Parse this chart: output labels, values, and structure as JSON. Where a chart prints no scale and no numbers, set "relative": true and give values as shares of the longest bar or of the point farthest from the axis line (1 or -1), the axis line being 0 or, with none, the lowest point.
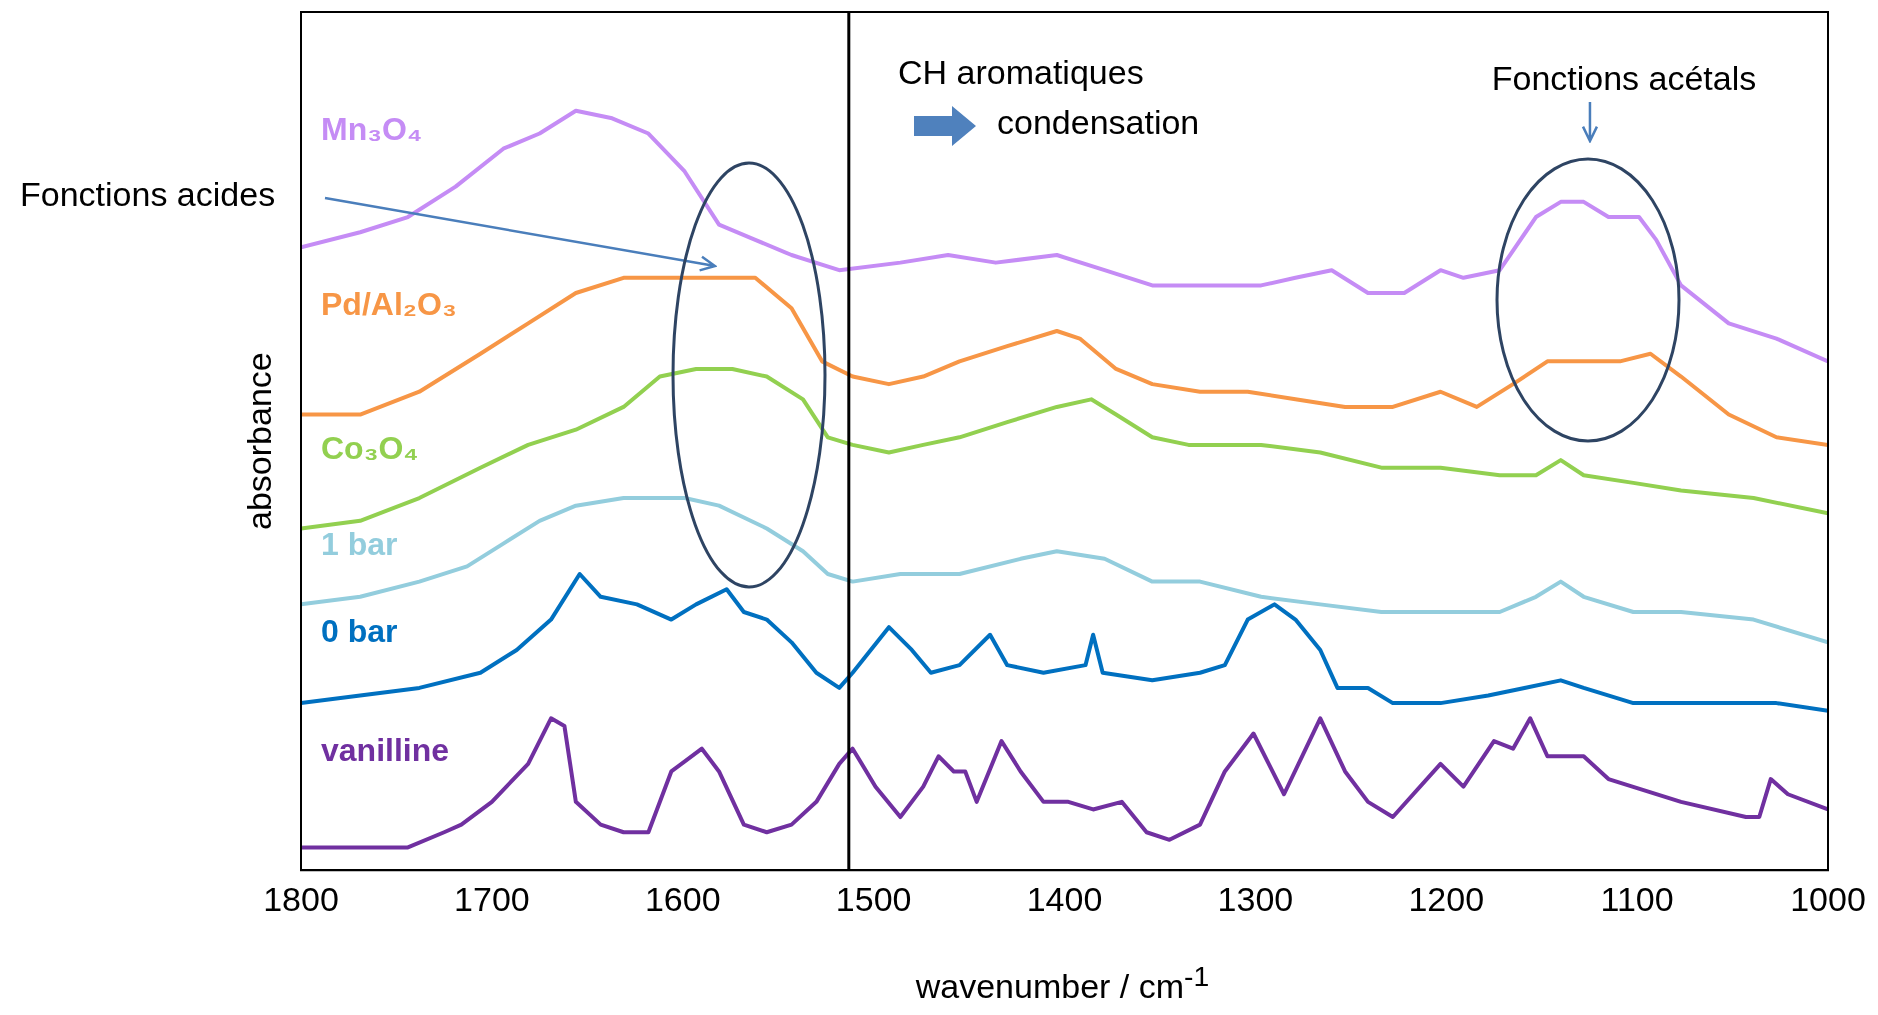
{
  "chart_data": {
    "type": "line",
    "relative": true,
    "xlabel": "wavenumber / cm$^{-1}$",
    "ylabel": "absorbance",
    "xlim": [
      1800,
      1000
    ],
    "xticks": [
      1800,
      1700,
      1600,
      1500,
      1400,
      1300,
      1200,
      1100,
      1000
    ],
    "grid": false,
    "legend": false,
    "marker": "none",
    "line_style": "solid",
    "ref_lines": [
      {
        "axis": "x",
        "value": 1513,
        "color": "#000000"
      }
    ],
    "annotations": [
      "Fonctions acides",
      "Fonctions acétals",
      "CH aromatiques",
      "condensation"
    ],
    "series": [
      {
        "name": "Mn₃O₄",
        "color": "#c58cf5",
        "x": [
          1800,
          1769,
          1744,
          1719,
          1694,
          1675,
          1656,
          1637,
          1618,
          1599,
          1581,
          1562,
          1543,
          1518,
          1486,
          1461,
          1436,
          1404,
          1379,
          1354,
          1329,
          1297,
          1279,
          1260,
          1241,
          1222,
          1203,
          1191,
          1172,
          1153,
          1140,
          1128,
          1115,
          1099,
          1090,
          1077,
          1052,
          1027,
          1000
        ],
        "values": [
          0.82,
          0.84,
          0.86,
          0.9,
          0.95,
          0.97,
          1.0,
          0.99,
          0.97,
          0.92,
          0.85,
          0.83,
          0.81,
          0.79,
          0.8,
          0.81,
          0.8,
          0.81,
          0.79,
          0.77,
          0.77,
          0.77,
          0.78,
          0.79,
          0.76,
          0.76,
          0.79,
          0.78,
          0.79,
          0.86,
          0.88,
          0.88,
          0.86,
          0.86,
          0.83,
          0.77,
          0.72,
          0.7,
          0.67
        ]
      },
      {
        "name": "Pd/Al₂O₃",
        "color": "#f79646",
        "x": [
          1800,
          1769,
          1738,
          1706,
          1681,
          1656,
          1631,
          1606,
          1581,
          1562,
          1543,
          1527,
          1511,
          1492,
          1474,
          1455,
          1430,
          1404,
          1392,
          1373,
          1354,
          1329,
          1304,
          1279,
          1253,
          1228,
          1203,
          1184,
          1165,
          1147,
          1128,
          1109,
          1093,
          1077,
          1052,
          1027,
          1000
        ],
        "values": [
          0.6,
          0.6,
          0.63,
          0.68,
          0.72,
          0.76,
          0.78,
          0.78,
          0.78,
          0.78,
          0.74,
          0.67,
          0.65,
          0.64,
          0.65,
          0.67,
          0.69,
          0.71,
          0.7,
          0.66,
          0.64,
          0.63,
          0.63,
          0.62,
          0.61,
          0.61,
          0.63,
          0.61,
          0.64,
          0.67,
          0.67,
          0.67,
          0.68,
          0.65,
          0.6,
          0.57,
          0.56
        ]
      },
      {
        "name": "Co₃O₄",
        "color": "#92d050",
        "x": [
          1800,
          1769,
          1738,
          1706,
          1681,
          1656,
          1631,
          1612,
          1593,
          1574,
          1556,
          1537,
          1524,
          1511,
          1492,
          1474,
          1455,
          1430,
          1404,
          1386,
          1373,
          1354,
          1335,
          1297,
          1266,
          1234,
          1203,
          1172,
          1153,
          1140,
          1128,
          1102,
          1077,
          1039,
          1000
        ],
        "values": [
          0.45,
          0.46,
          0.49,
          0.53,
          0.56,
          0.58,
          0.61,
          0.65,
          0.66,
          0.66,
          0.65,
          0.62,
          0.57,
          0.56,
          0.55,
          0.56,
          0.57,
          0.59,
          0.61,
          0.62,
          0.6,
          0.57,
          0.56,
          0.56,
          0.55,
          0.53,
          0.53,
          0.52,
          0.52,
          0.54,
          0.52,
          0.51,
          0.5,
          0.49,
          0.47
        ]
      },
      {
        "name": "1 bar",
        "color": "#93cddd",
        "x": [
          1800,
          1769,
          1738,
          1713,
          1694,
          1675,
          1656,
          1631,
          1599,
          1581,
          1556,
          1537,
          1524,
          1511,
          1486,
          1455,
          1423,
          1404,
          1379,
          1354,
          1329,
          1297,
          1266,
          1234,
          1203,
          1172,
          1153,
          1140,
          1128,
          1102,
          1077,
          1039,
          1000
        ],
        "values": [
          0.35,
          0.36,
          0.38,
          0.4,
          0.43,
          0.46,
          0.48,
          0.49,
          0.49,
          0.48,
          0.45,
          0.42,
          0.39,
          0.38,
          0.39,
          0.39,
          0.41,
          0.42,
          0.41,
          0.38,
          0.38,
          0.36,
          0.35,
          0.34,
          0.34,
          0.34,
          0.36,
          0.38,
          0.36,
          0.34,
          0.34,
          0.33,
          0.3
        ]
      },
      {
        "name": "0 bar",
        "color": "#0070c0",
        "x": [
          1800,
          1769,
          1738,
          1706,
          1687,
          1669,
          1654,
          1643,
          1624,
          1606,
          1593,
          1577,
          1568,
          1556,
          1543,
          1530,
          1518,
          1511,
          1492,
          1480,
          1470,
          1455,
          1439,
          1430,
          1411,
          1389,
          1385,
          1380,
          1354,
          1329,
          1316,
          1304,
          1290,
          1279,
          1266,
          1257,
          1241,
          1228,
          1203,
          1178,
          1159,
          1140,
          1128,
          1102,
          1065,
          1027,
          1000
        ],
        "values": [
          0.22,
          0.23,
          0.24,
          0.26,
          0.29,
          0.33,
          0.39,
          0.36,
          0.35,
          0.33,
          0.35,
          0.37,
          0.34,
          0.33,
          0.3,
          0.26,
          0.24,
          0.26,
          0.32,
          0.29,
          0.26,
          0.27,
          0.31,
          0.27,
          0.26,
          0.27,
          0.31,
          0.26,
          0.25,
          0.26,
          0.27,
          0.33,
          0.35,
          0.33,
          0.29,
          0.24,
          0.24,
          0.22,
          0.22,
          0.23,
          0.24,
          0.25,
          0.24,
          0.22,
          0.22,
          0.22,
          0.21
        ]
      },
      {
        "name": "vanilline",
        "color": "#7030a0",
        "x": [
          1800,
          1769,
          1744,
          1725,
          1716,
          1700,
          1681,
          1669,
          1662,
          1656,
          1643,
          1631,
          1618,
          1606,
          1590,
          1581,
          1568,
          1556,
          1543,
          1530,
          1518,
          1511,
          1499,
          1486,
          1474,
          1466,
          1458,
          1452,
          1446,
          1433,
          1423,
          1411,
          1398,
          1385,
          1370,
          1357,
          1345,
          1329,
          1316,
          1301,
          1285,
          1266,
          1253,
          1241,
          1228,
          1203,
          1191,
          1175,
          1165,
          1156,
          1147,
          1128,
          1115,
          1077,
          1043,
          1036,
          1030,
          1021,
          1000
        ],
        "values": [
          0.03,
          0.03,
          0.03,
          0.05,
          0.06,
          0.09,
          0.14,
          0.2,
          0.19,
          0.09,
          0.06,
          0.05,
          0.05,
          0.13,
          0.16,
          0.13,
          0.06,
          0.05,
          0.06,
          0.09,
          0.14,
          0.16,
          0.11,
          0.07,
          0.11,
          0.15,
          0.13,
          0.13,
          0.09,
          0.17,
          0.13,
          0.09,
          0.09,
          0.08,
          0.09,
          0.05,
          0.04,
          0.06,
          0.13,
          0.18,
          0.1,
          0.2,
          0.13,
          0.09,
          0.07,
          0.14,
          0.11,
          0.17,
          0.16,
          0.2,
          0.15,
          0.15,
          0.12,
          0.09,
          0.07,
          0.07,
          0.12,
          0.1,
          0.08
        ]
      }
    ]
  }
}
